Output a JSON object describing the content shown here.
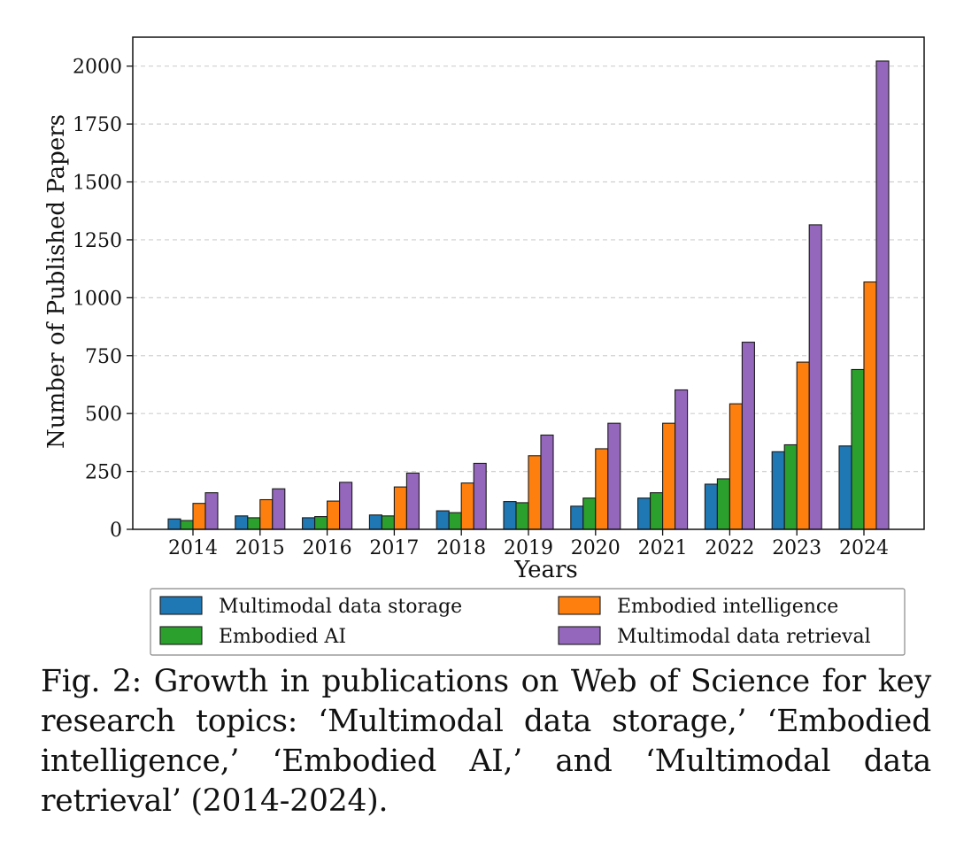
{
  "caption": "Fig. 2: Growth in publications on Web of Science for key research topics: ‘Multimodal data storage,’ ‘Embodied intelligence,’ ‘Embodied AI,’ and ‘Multimodal data retrieval’ (2014-2024).",
  "chart_data": {
    "type": "bar",
    "title": "",
    "xlabel": "Years",
    "ylabel": "Number of Published Papers",
    "categories": [
      "2014",
      "2015",
      "2016",
      "2017",
      "2018",
      "2019",
      "2020",
      "2021",
      "2022",
      "2023",
      "2024"
    ],
    "ylim": [
      0,
      2125
    ],
    "yticks": [
      0,
      250,
      500,
      750,
      1000,
      1250,
      1500,
      1750,
      2000
    ],
    "ytick_labels": [
      "0",
      "250",
      "500",
      "750",
      "1000",
      "1250",
      "1500",
      "1750",
      "2000"
    ],
    "grid": "horizontal dashed",
    "legend_position": "below chart",
    "series": [
      {
        "name": "Multimodal data storage",
        "color": "#1f77b4",
        "values": [
          45,
          58,
          50,
          62,
          80,
          120,
          100,
          135,
          195,
          335,
          360
        ]
      },
      {
        "name": "Embodied AI",
        "color": "#2ca02c",
        "values": [
          38,
          50,
          55,
          58,
          72,
          115,
          135,
          158,
          218,
          365,
          690
        ]
      },
      {
        "name": "Embodied intelligence",
        "color": "#ff7f0e",
        "values": [
          112,
          128,
          122,
          183,
          200,
          318,
          348,
          458,
          542,
          722,
          1068
        ]
      },
      {
        "name": "Multimodal data retrieval",
        "color": "#9467bd",
        "values": [
          158,
          175,
          203,
          243,
          285,
          407,
          458,
          602,
          808,
          1315,
          2022
        ]
      }
    ],
    "legend_order": [
      0,
      2,
      1,
      3
    ]
  }
}
